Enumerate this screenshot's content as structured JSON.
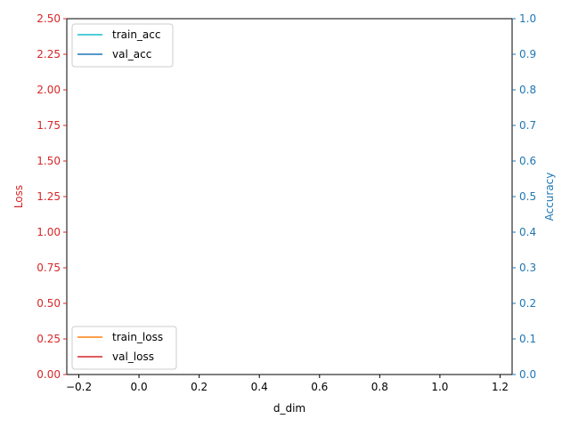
{
  "chart_data": {
    "type": "line",
    "title": "",
    "xlabel": "d_dim",
    "xlim": [
      -0.24,
      1.24
    ],
    "xticks": [
      -0.2,
      0.0,
      0.2,
      0.4,
      0.6,
      0.8,
      1.0,
      1.2
    ],
    "xtick_labels": [
      "−0.2",
      "0.0",
      "0.2",
      "0.4",
      "0.6",
      "0.8",
      "1.0",
      "1.2"
    ],
    "left_axis": {
      "label": "Loss",
      "color": "#d62728",
      "ylim": [
        0,
        2.5
      ],
      "ticks": [
        0,
        0.25,
        0.5,
        0.75,
        1.0,
        1.25,
        1.5,
        1.75,
        2.0,
        2.25,
        2.5
      ],
      "tick_labels": [
        "0.00",
        "0.25",
        "0.50",
        "0.75",
        "1.00",
        "1.25",
        "1.50",
        "1.75",
        "2.00",
        "2.25",
        "2.50"
      ]
    },
    "right_axis": {
      "label": "Accuracy",
      "color": "#1f77b4",
      "ylim": [
        0,
        1.0
      ],
      "ticks": [
        0,
        0.1,
        0.2,
        0.3,
        0.4,
        0.5,
        0.6,
        0.7,
        0.8,
        0.9,
        1.0
      ],
      "tick_labels": [
        "0.0",
        "0.1",
        "0.2",
        "0.3",
        "0.4",
        "0.5",
        "0.6",
        "0.7",
        "0.8",
        "0.9",
        "1.0"
      ]
    },
    "series": [
      {
        "name": "train_loss",
        "axis": "left",
        "color": "#ff7f0e",
        "x": [],
        "values": []
      },
      {
        "name": "val_loss",
        "axis": "left",
        "color": "#d62728",
        "x": [],
        "values": []
      },
      {
        "name": "train_acc",
        "axis": "right",
        "color": "#17becf",
        "x": [],
        "values": []
      },
      {
        "name": "val_acc",
        "axis": "right",
        "color": "#1f77b4",
        "x": [],
        "values": []
      }
    ],
    "legends": [
      {
        "placement": "top-left",
        "items": [
          "train_acc",
          "val_acc"
        ]
      },
      {
        "placement": "bottom-left",
        "items": [
          "train_loss",
          "val_loss"
        ]
      }
    ],
    "grid": false
  }
}
